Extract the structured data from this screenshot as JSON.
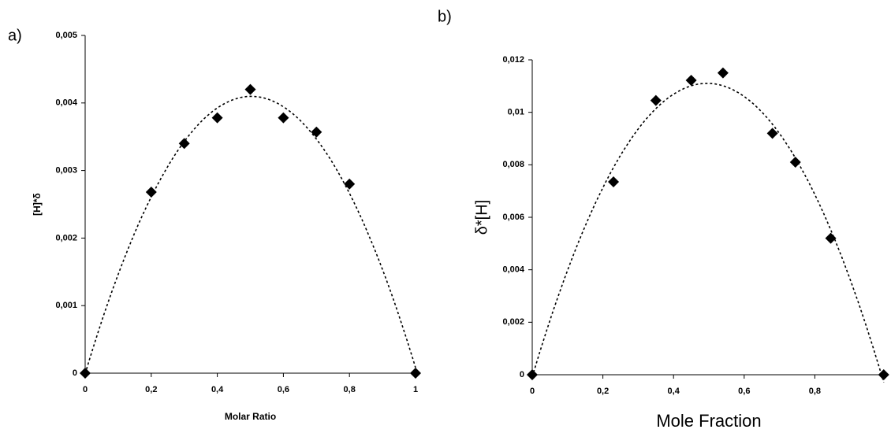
{
  "chart_data": [
    {
      "type": "scatter",
      "panel_label": "a)",
      "x_label": "Molar Ratio",
      "y_label": "[H]*δ",
      "x": [
        0,
        0.2,
        0.3,
        0.4,
        0.5,
        0.6,
        0.7,
        0.8,
        1
      ],
      "values": [
        0,
        0.00268,
        0.0034,
        0.00378,
        0.0042,
        0.00378,
        0.00357,
        0.0028,
        0
      ],
      "color": "#000000",
      "trendline": {
        "type": "polynomial",
        "order": 2
      },
      "xlim": [
        0,
        1
      ],
      "ylim": [
        0,
        0.005
      ],
      "xticks": [
        0,
        {
          "value": 0.2,
          "label": "0,2"
        },
        {
          "value": 0.4,
          "label": "0,4"
        },
        {
          "value": 0.6,
          "label": "0,6"
        },
        {
          "value": 0.8,
          "label": "0,8"
        },
        1
      ],
      "yticks": [
        0,
        {
          "value": 0.001,
          "label": "0,001"
        },
        {
          "value": 0.002,
          "label": "0,002"
        },
        {
          "value": 0.003,
          "label": "0,003"
        },
        {
          "value": 0.004,
          "label": "0,004"
        },
        {
          "value": 0.005,
          "label": "0,005"
        }
      ]
    },
    {
      "type": "scatter",
      "panel_label": "b)",
      "x_label": "Mole Fraction",
      "y_label": "δ*[H]",
      "x": [
        0,
        0.23,
        0.35,
        0.45,
        0.54,
        0.68,
        0.745,
        0.845,
        0.995
      ],
      "values": [
        0,
        0.00735,
        0.01045,
        0.01122,
        0.0115,
        0.0092,
        0.0081,
        0.0052,
        0
      ],
      "color": "#000000",
      "trendline": {
        "type": "polynomial",
        "order": 2
      },
      "xlim": [
        0,
        1
      ],
      "ylim": [
        0,
        0.012
      ],
      "xticks": [
        0,
        {
          "value": 0.2,
          "label": "0,2"
        },
        {
          "value": 0.4,
          "label": "0,4"
        },
        {
          "value": 0.6,
          "label": "0,6"
        },
        {
          "value": 0.8,
          "label": "0,8"
        }
      ],
      "yticks": [
        0,
        {
          "value": 0.002,
          "label": "0,002"
        },
        {
          "value": 0.004,
          "label": "0,004"
        },
        {
          "value": 0.006,
          "label": "0,006"
        },
        {
          "value": 0.008,
          "label": "0,008"
        },
        {
          "value": 0.01,
          "label": "0,01"
        },
        {
          "value": 0.012,
          "label": "0,012"
        }
      ]
    }
  ]
}
